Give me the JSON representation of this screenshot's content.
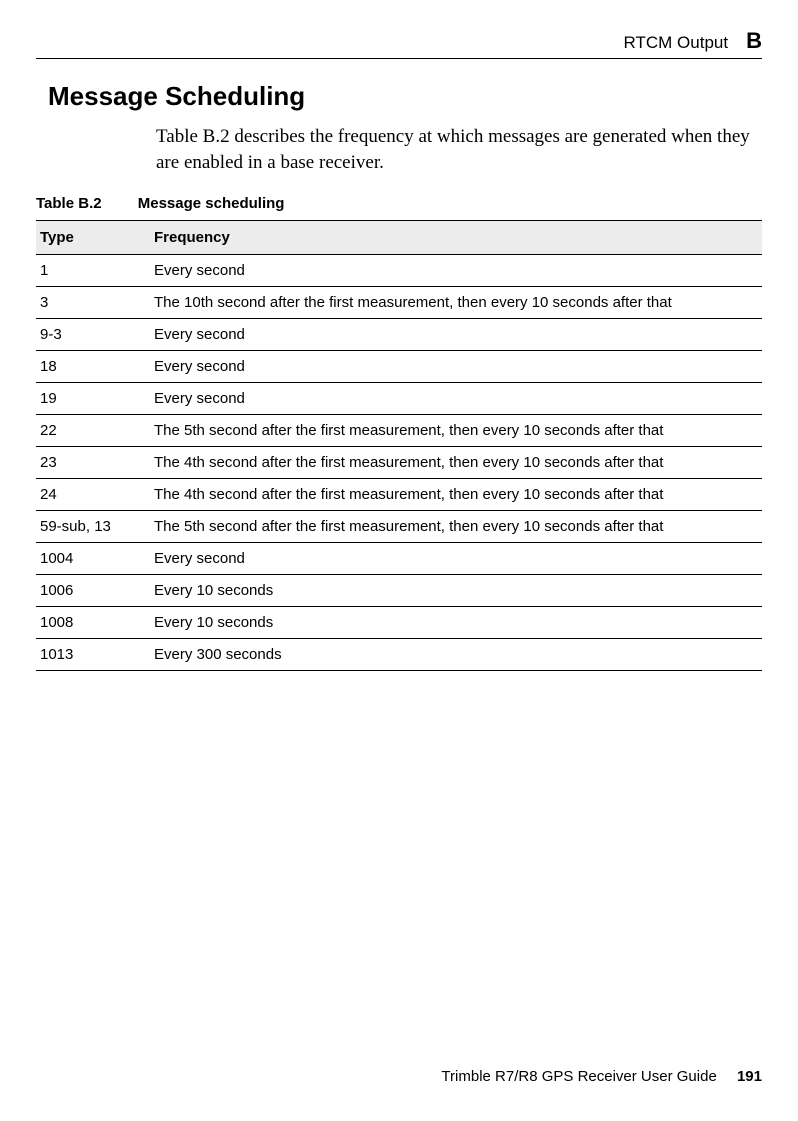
{
  "header": {
    "section": "RTCM Output",
    "appendix_letter": "B"
  },
  "heading": "Message Scheduling",
  "paragraph": "Table B.2 describes the frequency at which messages are generated when they are enabled in a base receiver.",
  "table": {
    "caption_label": "Table B.2",
    "caption_title": "Message scheduling",
    "columns": [
      "Type",
      "Frequency"
    ],
    "rows": [
      [
        "1",
        "Every second"
      ],
      [
        "3",
        "The 10th second after the first measurement, then every 10 seconds after that"
      ],
      [
        "9-3",
        "Every second"
      ],
      [
        "18",
        "Every second"
      ],
      [
        "19",
        "Every second"
      ],
      [
        "22",
        "The 5th second after the first measurement, then every 10 seconds after that"
      ],
      [
        "23",
        "The 4th second after the first measurement, then every 10 seconds after that"
      ],
      [
        "24",
        "The 4th second after the first measurement, then every 10 seconds after that"
      ],
      [
        "59-sub, 13",
        "The 5th second after the first measurement, then every 10 seconds after that"
      ],
      [
        "1004",
        "Every second"
      ],
      [
        "1006",
        "Every 10 seconds"
      ],
      [
        "1008",
        "Every 10 seconds"
      ],
      [
        "1013",
        "Every 300 seconds"
      ]
    ]
  },
  "footer": {
    "text": "Trimble R7/R8 GPS Receiver User Guide",
    "page": "191"
  }
}
